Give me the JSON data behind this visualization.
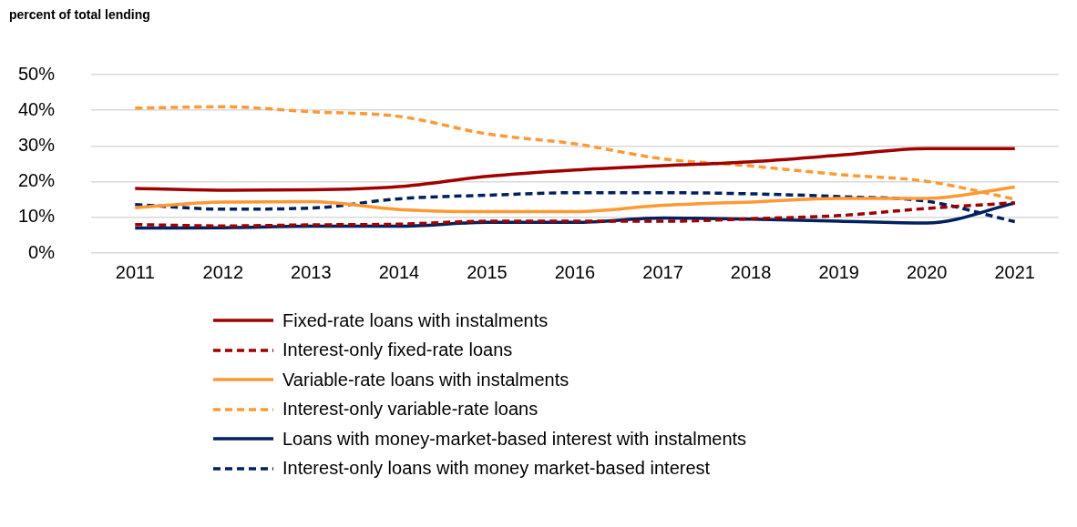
{
  "chart_data": {
    "type": "line",
    "ylabel": "percent of total lending",
    "categories": [
      "2011",
      "2012",
      "2013",
      "2014",
      "2015",
      "2016",
      "2017",
      "2018",
      "2019",
      "2020",
      "2021"
    ],
    "ylim": [
      0,
      50
    ],
    "yticks": [
      {
        "value": 0,
        "label": "0%"
      },
      {
        "value": 10,
        "label": "10%"
      },
      {
        "value": 20,
        "label": "20%"
      },
      {
        "value": 30,
        "label": "30%"
      },
      {
        "value": 40,
        "label": "40%"
      },
      {
        "value": 50,
        "label": "50%"
      }
    ],
    "grid": "y",
    "legend": "bottom",
    "marker": "none",
    "series": [
      {
        "name": "Fixed-rate loans with instalments",
        "color": "#a00000",
        "line_style": "solid",
        "values": [
          18.1,
          17.6,
          17.7,
          18.6,
          21.5,
          23.3,
          24.5,
          25.6,
          27.4,
          29.3,
          29.3
        ]
      },
      {
        "name": "Interest-only fixed-rate loans",
        "color": "#a00000",
        "line_style": "dashed",
        "values": [
          8,
          7.6,
          7.9,
          8.1,
          8.9,
          8.9,
          8.9,
          9.6,
          10.5,
          12.5,
          14.1
        ]
      },
      {
        "name": "Variable-rate loans with instalments",
        "color": "#ff9933",
        "line_style": "solid",
        "values": [
          12.7,
          14.3,
          14.4,
          12.2,
          11.6,
          11.6,
          13.4,
          14.3,
          15.3,
          15.3,
          18.5
        ]
      },
      {
        "name": "Interest-only variable-rate loans",
        "color": "#ff9933",
        "line_style": "dashed",
        "values": [
          40.6,
          41,
          39.6,
          38.3,
          33.4,
          30.6,
          26.4,
          24.4,
          22,
          20.1,
          15.1
        ]
      },
      {
        "name": "Loans with money-market-based interest with instalments",
        "color": "#002060",
        "line_style": "solid",
        "values": [
          7,
          7.1,
          7.5,
          7.5,
          8.6,
          8.6,
          9.8,
          9.5,
          8.9,
          8.4,
          14
        ]
      },
      {
        "name": "Interest-only loans with money market-based interest",
        "color": "#002060",
        "line_style": "dashed",
        "values": [
          13.6,
          12.3,
          12.6,
          15.2,
          16.2,
          16.9,
          16.9,
          16.6,
          15.8,
          14.5,
          8.8
        ]
      }
    ]
  }
}
